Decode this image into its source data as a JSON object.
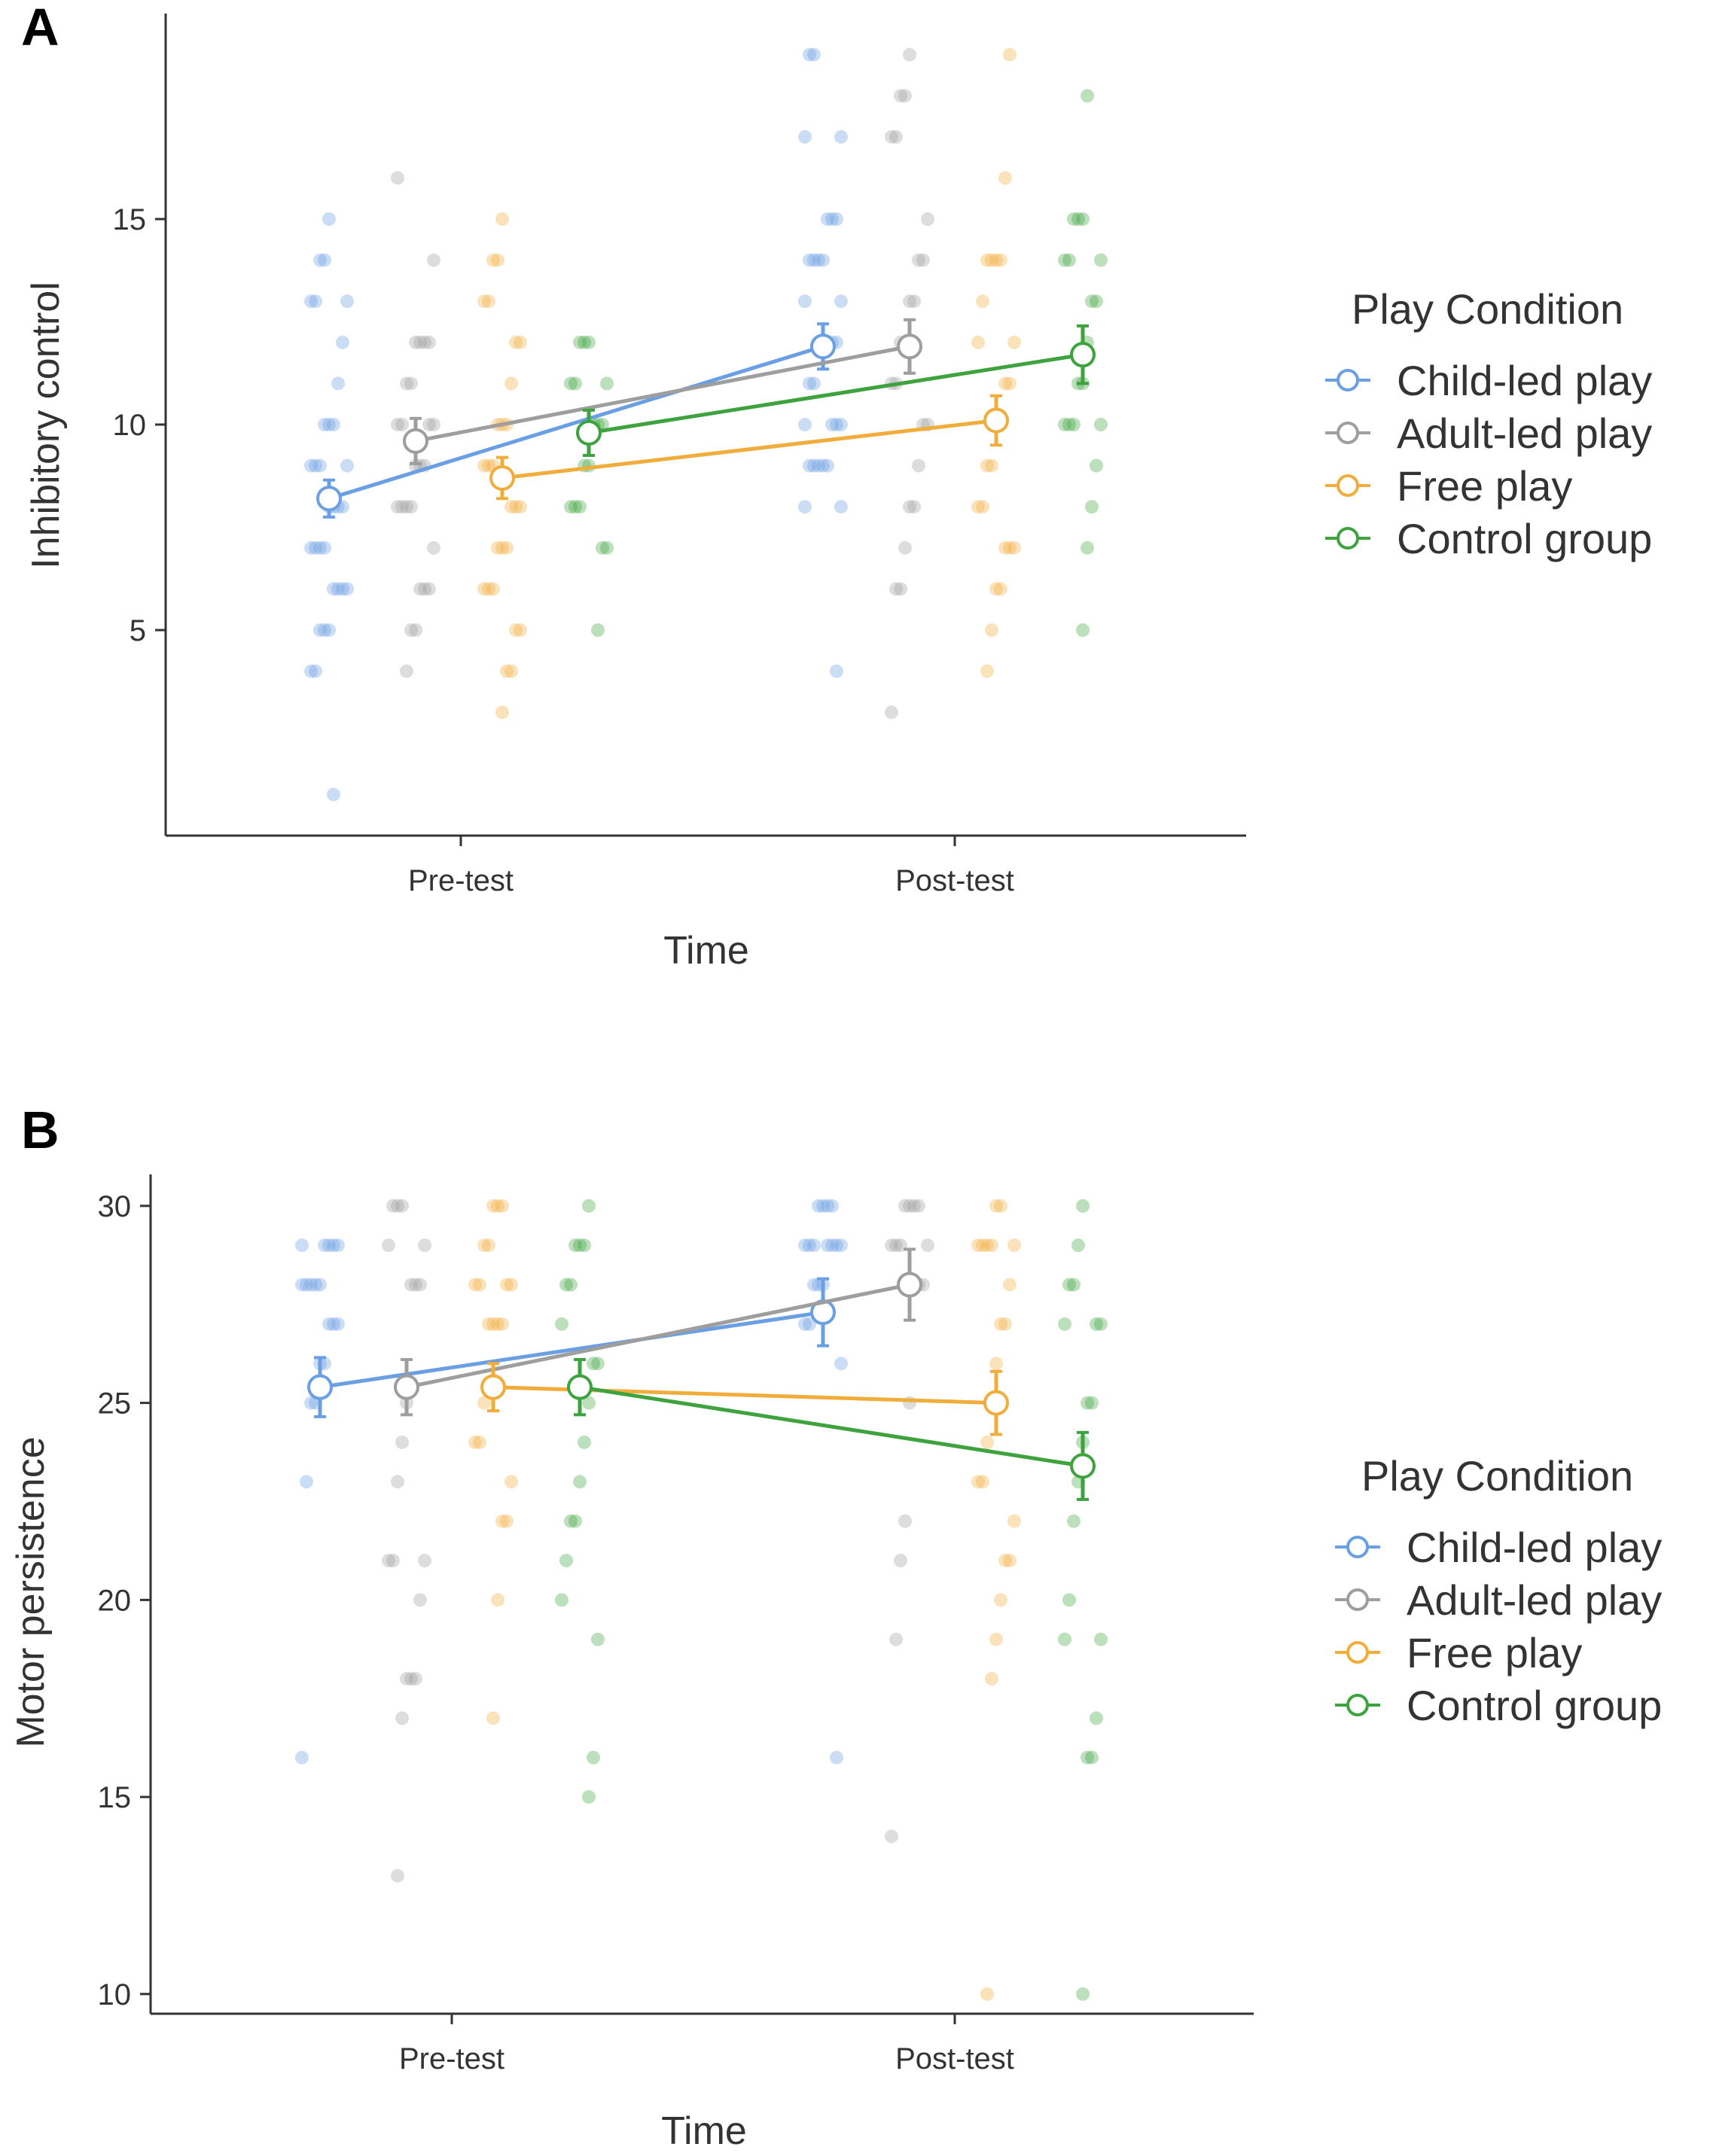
{
  "colors": {
    "Child-led play": "#6a9fe3",
    "Adult-led play": "#9e9e9e",
    "Free play": "#f0ad3c",
    "Control group": "#3ea23e"
  },
  "chart_data": [
    {
      "panel": "A",
      "type": "line",
      "xlabel": "Time",
      "ylabel": "Inhibitory control",
      "categories": [
        "Pre-test",
        "Post-test"
      ],
      "yticks": [
        5,
        10,
        15
      ],
      "ylim": [
        0,
        20
      ],
      "legend_title": "Play Condition",
      "series": [
        {
          "name": "Child-led play",
          "values": [
            8.2,
            11.9
          ],
          "errors": [
            0.45,
            0.55
          ],
          "points": [
            [
              4,
              4,
              5,
              5,
              5,
              6,
              6,
              6,
              6,
              7,
              7,
              7,
              7,
              8,
              8,
              8,
              8,
              9,
              9,
              9,
              9,
              10,
              10,
              10,
              11,
              12,
              13,
              13,
              13,
              14,
              14,
              15,
              1
            ],
            [
              4,
              8,
              8,
              9,
              9,
              9,
              9,
              9,
              10,
              10,
              10,
              10,
              11,
              11,
              12,
              12,
              12,
              12,
              12,
              13,
              13,
              14,
              14,
              14,
              14,
              15,
              15,
              15,
              17,
              17,
              19,
              19
            ]
          ]
        },
        {
          "name": "Adult-led play",
          "values": [
            9.6,
            11.9
          ],
          "errors": [
            0.55,
            0.65
          ],
          "points": [
            [
              4,
              5,
              5,
              6,
              6,
              6,
              7,
              8,
              8,
              8,
              8,
              9,
              9,
              9,
              10,
              10,
              10,
              10,
              11,
              11,
              12,
              12,
              12,
              12,
              14,
              16
            ],
            [
              3,
              6,
              6,
              7,
              8,
              8,
              9,
              10,
              10,
              11,
              11,
              12,
              12,
              13,
              13,
              14,
              14,
              15,
              17,
              17,
              18,
              18,
              19
            ]
          ]
        },
        {
          "name": "Free play",
          "values": [
            8.7,
            10.1
          ],
          "errors": [
            0.5,
            0.6
          ],
          "points": [
            [
              3,
              4,
              4,
              5,
              5,
              6,
              6,
              6,
              7,
              7,
              7,
              8,
              8,
              8,
              9,
              9,
              9,
              10,
              10,
              10,
              11,
              12,
              12,
              13,
              13,
              14,
              14,
              15
            ],
            [
              4,
              5,
              6,
              6,
              7,
              7,
              7,
              8,
              8,
              9,
              9,
              10,
              10,
              11,
              11,
              12,
              12,
              13,
              14,
              14,
              14,
              14,
              16,
              19
            ]
          ]
        },
        {
          "name": "Control group",
          "values": [
            9.8,
            11.7
          ],
          "errors": [
            0.55,
            0.7
          ],
          "points": [
            [
              5,
              7,
              7,
              8,
              8,
              8,
              9,
              9,
              10,
              10,
              10,
              11,
              11,
              11,
              12,
              12,
              12
            ],
            [
              5,
              7,
              8,
              9,
              10,
              10,
              10,
              10,
              11,
              11,
              12,
              13,
              13,
              14,
              14,
              14,
              15,
              15,
              15,
              18
            ]
          ]
        }
      ]
    },
    {
      "panel": "B",
      "type": "line",
      "xlabel": "Time",
      "ylabel": "Motor persistence",
      "categories": [
        "Pre-test",
        "Post-test"
      ],
      "yticks": [
        10,
        15,
        20,
        25,
        30
      ],
      "ylim": [
        9.5,
        30.8
      ],
      "legend_title": "Play Condition",
      "series": [
        {
          "name": "Child-led play",
          "values": [
            25.4,
            27.3
          ],
          "errors": [
            0.75,
            0.85
          ],
          "points": [
            [
              16,
              23,
              25,
              25,
              26,
              26,
              27,
              27,
              27,
              28,
              28,
              28,
              28,
              28,
              29,
              29,
              29,
              29,
              29
            ],
            [
              16,
              26,
              27,
              27,
              28,
              28,
              28,
              29,
              29,
              29,
              29,
              29,
              29,
              29,
              30,
              30,
              30,
              30
            ]
          ]
        },
        {
          "name": "Adult-led play",
          "values": [
            25.4,
            28.0
          ],
          "errors": [
            0.7,
            0.9
          ],
          "points": [
            [
              13,
              17,
              18,
              18,
              18,
              20,
              21,
              21,
              21,
              23,
              24,
              25,
              28,
              28,
              28,
              29,
              29,
              30,
              30,
              30
            ],
            [
              14,
              19,
              21,
              22,
              25,
              28,
              28,
              28,
              29,
              29,
              29,
              29,
              30,
              30,
              30,
              30
            ]
          ]
        },
        {
          "name": "Free play",
          "values": [
            25.4,
            25.0
          ],
          "errors": [
            0.6,
            0.8
          ],
          "points": [
            [
              17,
              20,
              22,
              22,
              23,
              24,
              24,
              25,
              27,
              27,
              27,
              27,
              28,
              28,
              28,
              28,
              29,
              29,
              30,
              30,
              30
            ],
            [
              10,
              18,
              19,
              20,
              21,
              21,
              22,
              23,
              23,
              24,
              25,
              26,
              27,
              27,
              28,
              29,
              29,
              29,
              29,
              29,
              30,
              30
            ]
          ]
        },
        {
          "name": "Control group",
          "values": [
            25.4,
            23.4
          ],
          "errors": [
            0.7,
            0.85
          ],
          "points": [
            [
              15,
              16,
              19,
              20,
              21,
              22,
              22,
              23,
              24,
              25,
              26,
              26,
              27,
              28,
              28,
              29,
              29,
              29,
              30
            ],
            [
              10,
              16,
              16,
              17,
              19,
              19,
              20,
              22,
              23,
              24,
              25,
              25,
              27,
              27,
              27,
              28,
              28,
              29,
              30
            ]
          ]
        }
      ]
    }
  ]
}
